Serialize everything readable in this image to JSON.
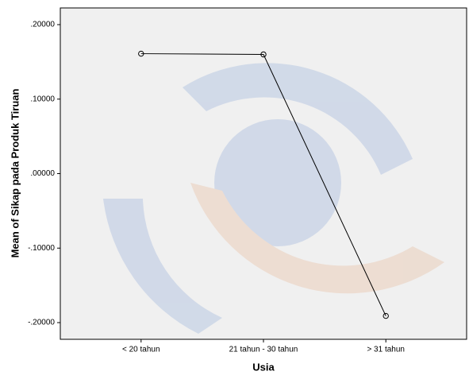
{
  "chart_data": {
    "type": "line",
    "y_label": "Mean of Sikap pada Produk Tiruan",
    "x_label": "Usia",
    "categories": [
      "< 20 tahun",
      "21 tahun - 30 tahun",
      "> 31 tahun"
    ],
    "values": [
      0.161,
      0.16,
      -0.191
    ],
    "color": "#000000",
    "ylim": [
      -0.2224,
      0.2224
    ],
    "yticks": [
      {
        "value": -0.2,
        "label": "-.20000"
      },
      {
        "value": -0.1,
        "label": "-.10000"
      },
      {
        "value": 0,
        "label": ".00000"
      },
      {
        "value": 0.1,
        "label": ".10000"
      },
      {
        "value": 0.2,
        "label": ".20000"
      }
    ]
  }
}
